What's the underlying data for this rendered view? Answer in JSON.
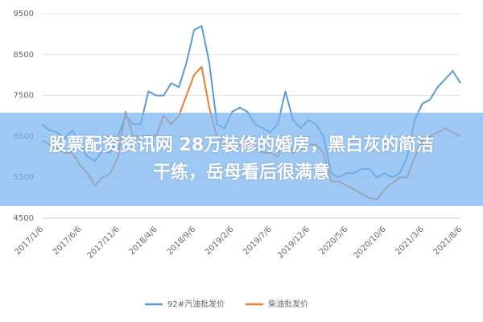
{
  "chart_data": {
    "type": "line",
    "categories": [
      "2017/1/6",
      null,
      null,
      null,
      null,
      "2017/6/6",
      null,
      null,
      null,
      null,
      "2017/11/6",
      null,
      null,
      null,
      null,
      "2018/4/6",
      null,
      null,
      null,
      null,
      "2018/9/6",
      null,
      null,
      null,
      null,
      "2019/2/6",
      null,
      null,
      null,
      null,
      "2019/7/6",
      null,
      null,
      null,
      null,
      "2019/12/6",
      null,
      null,
      null,
      null,
      "2020/5/6",
      null,
      null,
      null,
      null,
      "2020/10/6",
      null,
      null,
      null,
      null,
      "2021/3/6",
      null,
      null,
      null,
      null,
      "2021/8/6"
    ],
    "series": [
      {
        "name": "92#汽油批发价",
        "color": "#5b9bd5",
        "values": [
          6800,
          6650,
          6600,
          6450,
          6650,
          6300,
          6000,
          5900,
          6150,
          6100,
          6500,
          7000,
          6800,
          6800,
          7600,
          7500,
          7500,
          7800,
          7700,
          8300,
          9100,
          9200,
          8300,
          6800,
          6700,
          7100,
          7200,
          7100,
          6800,
          6700,
          6600,
          6800,
          7600,
          6900,
          6700,
          6900,
          6800,
          6500,
          5600,
          5500,
          5600,
          5600,
          5700,
          5700,
          5500,
          5600,
          5500,
          5600,
          6000,
          6900,
          7300,
          7400,
          7700,
          7900,
          8100,
          7800
        ]
      },
      {
        "name": "柴油批发价",
        "color": "#ed7d31",
        "values": [
          6400,
          6300,
          6200,
          6100,
          6100,
          5800,
          5600,
          5300,
          5500,
          5600,
          6000,
          7100,
          6500,
          6500,
          6500,
          6500,
          7000,
          6800,
          7000,
          7500,
          8000,
          8200,
          7200,
          6500,
          6300,
          6200,
          6300,
          6400,
          6200,
          6100,
          6100,
          6000,
          6500,
          6100,
          6200,
          6300,
          6300,
          6100,
          5400,
          5400,
          5300,
          5200,
          5100,
          5000,
          4950,
          5200,
          5350,
          5500,
          5500,
          6000,
          6400,
          6500,
          6600,
          6700,
          6600,
          6500
        ]
      }
    ],
    "ylim": [
      4500,
      9500
    ],
    "yticks": [
      4500,
      5500,
      6500,
      7500,
      8500,
      9500
    ],
    "grid": true
  },
  "banner": {
    "lines": [
      "股票配资资讯网 28万装修的婚房，黑白灰的简洁",
      "干练，岳母看后很满意"
    ]
  }
}
